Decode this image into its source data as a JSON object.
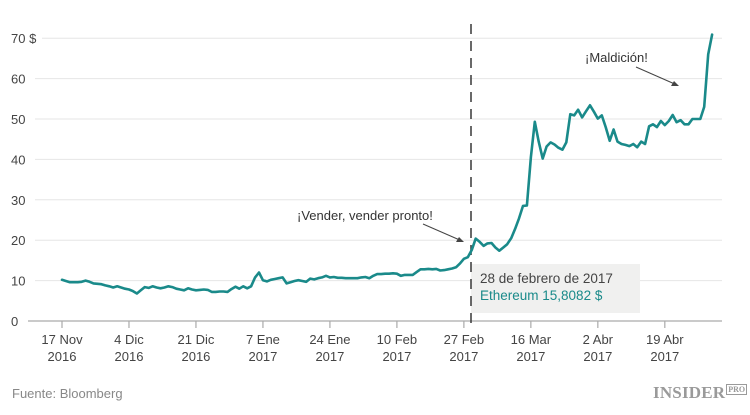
{
  "chart_data": {
    "type": "line",
    "title": "",
    "xlabel": "",
    "ylabel": "",
    "ylim": [
      0,
      70
    ],
    "y_ticks": [
      {
        "value": 0,
        "label": "0"
      },
      {
        "value": 10,
        "label": "10"
      },
      {
        "value": 20,
        "label": "20"
      },
      {
        "value": 30,
        "label": "30"
      },
      {
        "value": 40,
        "label": "40"
      },
      {
        "value": 50,
        "label": "50"
      },
      {
        "value": 60,
        "label": "60"
      },
      {
        "value": 70,
        "label": "70 $"
      }
    ],
    "x_ticks": [
      {
        "day": 0,
        "line1": "17 Nov",
        "line2": "2016"
      },
      {
        "day": 17,
        "line1": "4 Dic",
        "line2": "2016"
      },
      {
        "day": 34,
        "line1": "21 Dic",
        "line2": "2016"
      },
      {
        "day": 51,
        "line1": "7 Ene",
        "line2": "2017"
      },
      {
        "day": 68,
        "line1": "24 Ene",
        "line2": "2017"
      },
      {
        "day": 85,
        "line1": "10 Feb",
        "line2": "2017"
      },
      {
        "day": 102,
        "line1": "27 Feb",
        "line2": "2017"
      },
      {
        "day": 119,
        "line1": "16 Mar",
        "line2": "2017"
      },
      {
        "day": 136,
        "line1": "2 Abr",
        "line2": "2017"
      },
      {
        "day": 153,
        "line1": "19 Abr",
        "line2": "2017"
      }
    ],
    "grid": true,
    "legend": null,
    "series": [
      {
        "name": "Ethereum",
        "color": "#1a8a8a",
        "points": [
          [
            0,
            10.2
          ],
          [
            1,
            9.9
          ],
          [
            2,
            9.6
          ],
          [
            3,
            9.6
          ],
          [
            4,
            9.6
          ],
          [
            5,
            9.7
          ],
          [
            6,
            10.0
          ],
          [
            7,
            9.7
          ],
          [
            8,
            9.3
          ],
          [
            9,
            9.2
          ],
          [
            10,
            9.1
          ],
          [
            11,
            8.8
          ],
          [
            12,
            8.6
          ],
          [
            13,
            8.3
          ],
          [
            14,
            8.6
          ],
          [
            15,
            8.3
          ],
          [
            16,
            8.0
          ],
          [
            17,
            7.8
          ],
          [
            18,
            7.4
          ],
          [
            19,
            6.8
          ],
          [
            20,
            7.6
          ],
          [
            21,
            8.4
          ],
          [
            22,
            8.2
          ],
          [
            23,
            8.6
          ],
          [
            24,
            8.3
          ],
          [
            25,
            8.1
          ],
          [
            26,
            8.3
          ],
          [
            27,
            8.6
          ],
          [
            28,
            8.4
          ],
          [
            29,
            8.0
          ],
          [
            30,
            7.8
          ],
          [
            31,
            7.6
          ],
          [
            32,
            8.1
          ],
          [
            33,
            7.8
          ],
          [
            34,
            7.6
          ],
          [
            35,
            7.7
          ],
          [
            36,
            7.8
          ],
          [
            37,
            7.7
          ],
          [
            38,
            7.2
          ],
          [
            39,
            7.2
          ],
          [
            40,
            7.3
          ],
          [
            41,
            7.3
          ],
          [
            42,
            7.2
          ],
          [
            43,
            7.9
          ],
          [
            44,
            8.5
          ],
          [
            45,
            8.0
          ],
          [
            46,
            8.6
          ],
          [
            47,
            8.1
          ],
          [
            48,
            8.6
          ],
          [
            49,
            10.8
          ],
          [
            50,
            12.0
          ],
          [
            51,
            10.1
          ],
          [
            52,
            9.8
          ],
          [
            53,
            10.2
          ],
          [
            54,
            10.4
          ],
          [
            55,
            10.6
          ],
          [
            56,
            10.8
          ],
          [
            57,
            9.3
          ],
          [
            58,
            9.6
          ],
          [
            59,
            9.9
          ],
          [
            60,
            10.1
          ],
          [
            61,
            9.9
          ],
          [
            62,
            9.7
          ],
          [
            63,
            10.5
          ],
          [
            64,
            10.3
          ],
          [
            65,
            10.6
          ],
          [
            66,
            10.8
          ],
          [
            67,
            11.2
          ],
          [
            68,
            10.8
          ],
          [
            69,
            10.9
          ],
          [
            70,
            10.7
          ],
          [
            71,
            10.7
          ],
          [
            72,
            10.6
          ],
          [
            73,
            10.6
          ],
          [
            74,
            10.6
          ],
          [
            75,
            10.6
          ],
          [
            76,
            10.8
          ],
          [
            77,
            10.9
          ],
          [
            78,
            10.6
          ],
          [
            79,
            11.2
          ],
          [
            80,
            11.6
          ],
          [
            81,
            11.6
          ],
          [
            82,
            11.7
          ],
          [
            83,
            11.7
          ],
          [
            84,
            11.8
          ],
          [
            85,
            11.7
          ],
          [
            86,
            11.2
          ],
          [
            87,
            11.4
          ],
          [
            88,
            11.4
          ],
          [
            89,
            11.4
          ],
          [
            90,
            12.1
          ],
          [
            91,
            12.8
          ],
          [
            92,
            12.8
          ],
          [
            93,
            12.9
          ],
          [
            94,
            12.8
          ],
          [
            95,
            12.9
          ],
          [
            96,
            12.5
          ],
          [
            97,
            12.6
          ],
          [
            98,
            12.8
          ],
          [
            99,
            13.0
          ],
          [
            100,
            13.3
          ],
          [
            101,
            14.2
          ],
          [
            102,
            15.4
          ],
          [
            103,
            15.8
          ],
          [
            104,
            17.6
          ],
          [
            105,
            20.4
          ],
          [
            106,
            19.6
          ],
          [
            107,
            18.6
          ],
          [
            108,
            19.2
          ],
          [
            109,
            19.3
          ],
          [
            110,
            18.2
          ],
          [
            111,
            17.4
          ],
          [
            112,
            18.2
          ],
          [
            113,
            19.0
          ],
          [
            114,
            20.5
          ],
          [
            115,
            22.8
          ],
          [
            116,
            25.4
          ],
          [
            117,
            28.5
          ],
          [
            118,
            28.6
          ],
          [
            119,
            40.6
          ],
          [
            120,
            49.3
          ],
          [
            121,
            44.4
          ],
          [
            122,
            40.2
          ],
          [
            123,
            43.2
          ],
          [
            124,
            44.2
          ],
          [
            125,
            43.7
          ],
          [
            126,
            42.9
          ],
          [
            127,
            42.4
          ],
          [
            128,
            44.2
          ],
          [
            129,
            51.2
          ],
          [
            130,
            50.9
          ],
          [
            131,
            52.3
          ],
          [
            132,
            50.4
          ],
          [
            133,
            51.9
          ],
          [
            134,
            53.4
          ],
          [
            135,
            51.8
          ],
          [
            136,
            50.1
          ],
          [
            137,
            50.9
          ],
          [
            138,
            48.0
          ],
          [
            139,
            44.6
          ],
          [
            140,
            47.4
          ],
          [
            141,
            44.4
          ],
          [
            142,
            43.8
          ],
          [
            143,
            43.6
          ],
          [
            144,
            43.3
          ],
          [
            145,
            43.8
          ],
          [
            146,
            43.0
          ],
          [
            147,
            44.4
          ],
          [
            148,
            43.8
          ],
          [
            149,
            48.2
          ],
          [
            150,
            48.7
          ],
          [
            151,
            48.0
          ],
          [
            152,
            49.5
          ],
          [
            153,
            48.5
          ],
          [
            154,
            49.5
          ],
          [
            155,
            51.0
          ],
          [
            156,
            49.2
          ],
          [
            157,
            49.7
          ],
          [
            158,
            48.7
          ],
          [
            159,
            48.7
          ],
          [
            160,
            50.0
          ],
          [
            161,
            50.0
          ],
          [
            162,
            50.0
          ],
          [
            163,
            53.0
          ],
          [
            164,
            66.0
          ],
          [
            165,
            70.9
          ]
        ]
      }
    ],
    "annotations": [
      {
        "text": "¡Vender, vender pronto!",
        "points_to_day": 102,
        "points_to_value": 19.5
      },
      {
        "text": "¡Maldición!",
        "points_to_day": 156,
        "points_to_value": 58.5
      }
    ],
    "marker": {
      "day": 103,
      "date_label": "28 de febrero de 2017",
      "value_label": "Ethereum 15,8082 $"
    }
  },
  "tooltip": {
    "date": "28 de febrero de 2017",
    "value": "Ethereum 15,8082 $"
  },
  "annotations": {
    "sell": "¡Vender, vender pronto!",
    "damn": "¡Maldición!"
  },
  "footer": {
    "source": "Fuente: Bloomberg",
    "logo": "INSIDER",
    "logo_badge": "PRO"
  },
  "colors": {
    "line": "#1a8a8a",
    "grid": "#e6e6e6",
    "axis": "#aaaaaa",
    "tooltip_bg": "#f0f0ef"
  }
}
